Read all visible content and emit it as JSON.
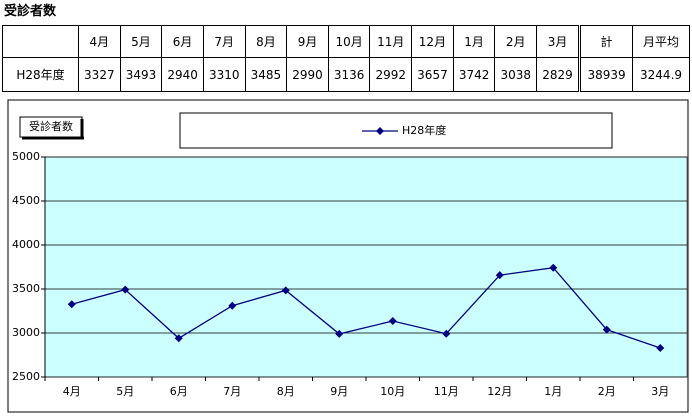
{
  "title": "受診者数",
  "table": {
    "header": [
      "4月",
      "5月",
      "6月",
      "7月",
      "8月",
      "9月",
      "10月",
      "11月",
      "12月",
      "1月",
      "2月",
      "3月",
      "計",
      "月平均"
    ],
    "rows": [
      {
        "label": "H28年度",
        "values": [
          3327,
          3493,
          2940,
          3310,
          3485,
          2990,
          3136,
          2992,
          3657,
          3742,
          3038,
          2829,
          38939,
          3244.9
        ]
      }
    ]
  },
  "chart_data": {
    "type": "line",
    "y_label": "受診者数",
    "categories": [
      "4月",
      "5月",
      "6月",
      "7月",
      "8月",
      "9月",
      "10月",
      "11月",
      "12月",
      "1月",
      "2月",
      "3月"
    ],
    "series": [
      {
        "name": "H28年度",
        "color": "#000080",
        "values": [
          3327,
          3493,
          2940,
          3310,
          3485,
          2990,
          3136,
          2992,
          3657,
          3742,
          3038,
          2829
        ]
      }
    ],
    "ylim": [
      2500,
      5000
    ],
    "yticks": [
      2500,
      3000,
      3500,
      4000,
      4500,
      5000
    ],
    "grid": true,
    "legend": "top",
    "plot_background": "#ccffff"
  }
}
